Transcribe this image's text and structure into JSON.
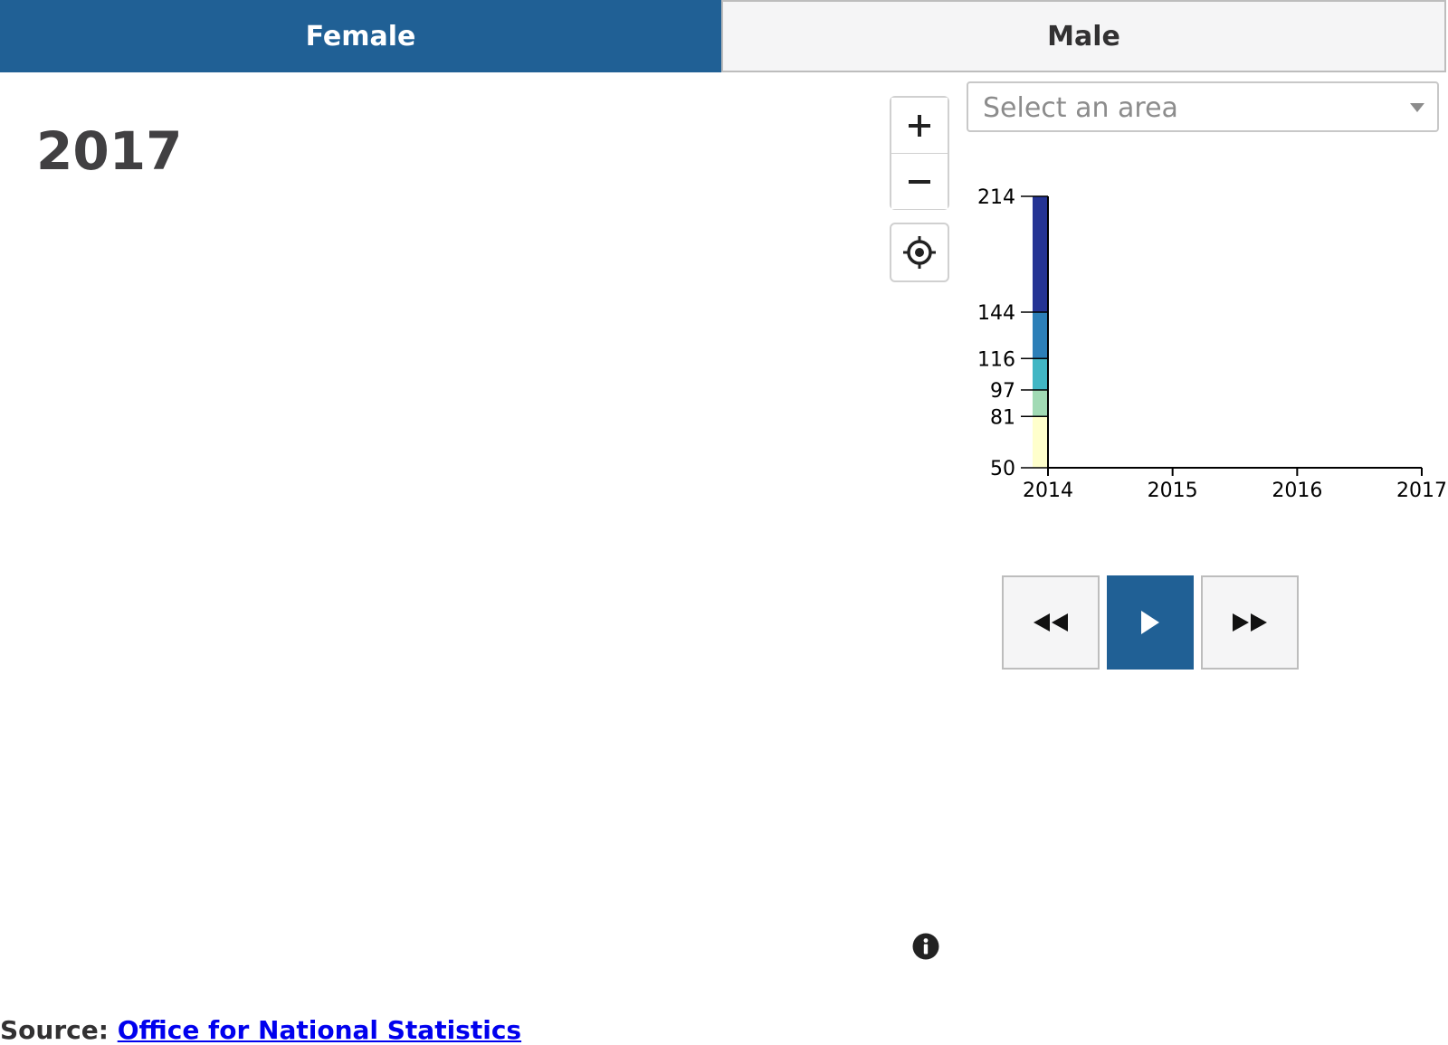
{
  "tabs": [
    {
      "label": "Female",
      "active": true
    },
    {
      "label": "Male",
      "active": false
    }
  ],
  "year": "2017",
  "map_controls": {
    "zoom_in": "plus-icon",
    "zoom_out": "minus-icon",
    "locate": "locate-icon"
  },
  "area_select": {
    "placeholder": "Select an area"
  },
  "chart_data": {
    "type": "bar",
    "orientation": "legend-scale",
    "x": [
      2014,
      2015,
      2016,
      2017
    ],
    "xtick_labels": [
      "2014",
      "2015",
      "2016",
      "2017"
    ],
    "ytick_labels": [
      "214",
      "144",
      "116",
      "97",
      "81",
      "50"
    ],
    "ylim": [
      50,
      214
    ],
    "breaks": [
      50,
      81,
      97,
      116,
      144,
      214
    ],
    "colors": [
      "#ffffcc",
      "#a1dab4",
      "#41b6c4",
      "#2c7fb8",
      "#253494"
    ],
    "grid": false,
    "legend": "none"
  },
  "playback": {
    "back": "rewind-icon",
    "play": "play-icon",
    "forward": "fast-forward-icon"
  },
  "colors": {
    "accent": "#206095",
    "tab_inactive": "#f5f5f6"
  },
  "source": {
    "label": "Source:",
    "link_text": "Office for National Statistics"
  }
}
